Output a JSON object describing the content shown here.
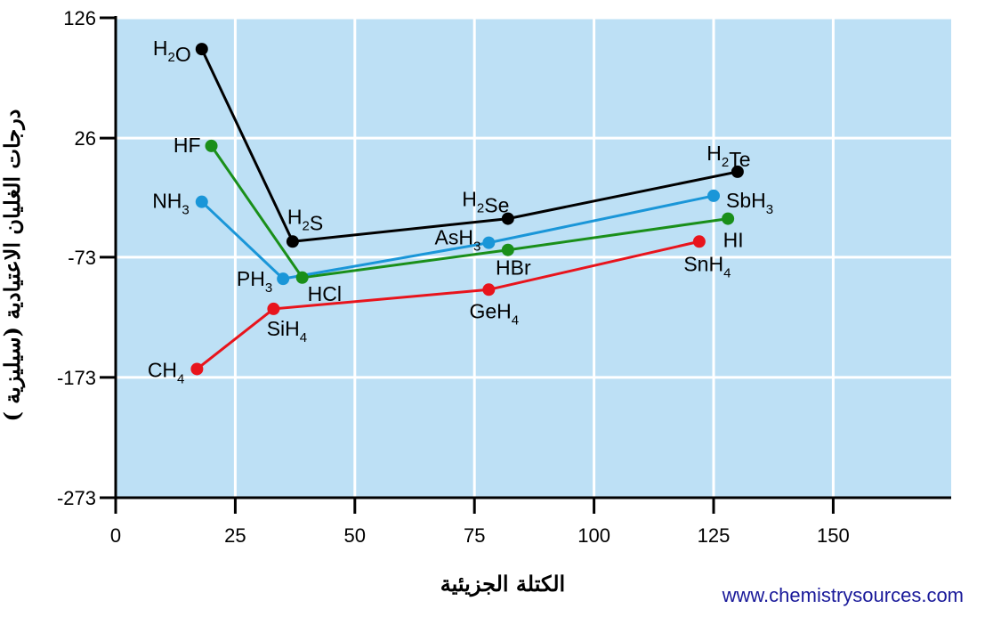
{
  "chart_data": {
    "type": "line",
    "xlabel": "الكتلة الجزيئية",
    "ylabel": "درجات الغليان الاعتيادية (سيليزية )",
    "xlim": [
      0,
      175
    ],
    "ylim": [
      -273,
      126
    ],
    "x_ticks": [
      "0",
      "25",
      "50",
      "75",
      "100",
      "125",
      "150"
    ],
    "y_ticks": [
      "126",
      "26",
      "-73",
      "-173",
      "-273"
    ],
    "grid": true,
    "plot_background": "#bde0f5",
    "series": [
      {
        "color": "#000000",
        "points": [
          {
            "label": "H2O",
            "x": 18,
            "y": 100
          },
          {
            "label": "H2S",
            "x": 37,
            "y": -60
          },
          {
            "label": "H2Se",
            "x": 82,
            "y": -41
          },
          {
            "label": "H2Te",
            "x": 130,
            "y": -2
          }
        ]
      },
      {
        "color": "#1a8f1a",
        "points": [
          {
            "label": "HF",
            "x": 20,
            "y": 19.5
          },
          {
            "label": "HCl",
            "x": 39,
            "y": -90
          },
          {
            "label": "HBr",
            "x": 82,
            "y": -67
          },
          {
            "label": "HI",
            "x": 128,
            "y": -41
          }
        ]
      },
      {
        "color": "#1a96d8",
        "points": [
          {
            "label": "NH3",
            "x": 18,
            "y": -27
          },
          {
            "label": "PH3",
            "x": 35,
            "y": -91
          },
          {
            "label": "AsH3",
            "x": 78,
            "y": -61
          },
          {
            "label": "SbH3",
            "x": 125,
            "y": -22
          }
        ]
      },
      {
        "color": "#e8141c",
        "points": [
          {
            "label": "CH4",
            "x": 17,
            "y": -166
          },
          {
            "label": "SiH4",
            "x": 33,
            "y": -116
          },
          {
            "label": "GeH4",
            "x": 78,
            "y": -100
          },
          {
            "label": "SnH4",
            "x": 122,
            "y": -60
          }
        ]
      }
    ]
  },
  "credit": "www.chemistrysources.com"
}
